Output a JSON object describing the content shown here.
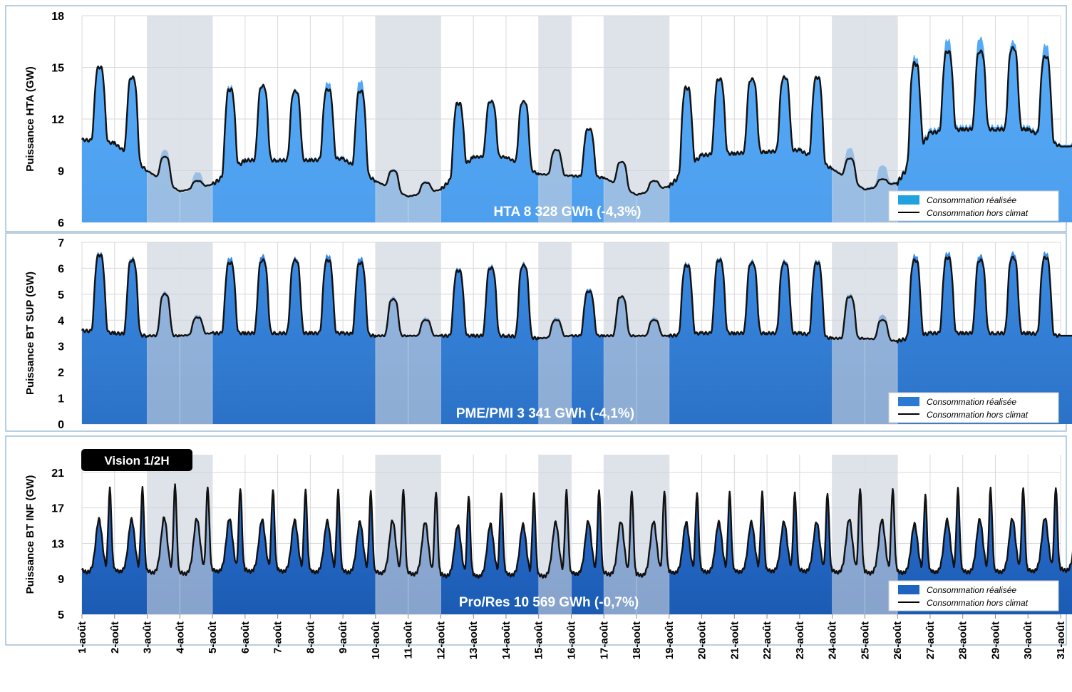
{
  "colors": {
    "weekend_band": "#c9d1db",
    "climate_line": "#111111",
    "frame": "#6f9fc6"
  },
  "badge": {
    "label": "Vision 1/2H"
  },
  "x_axis": {
    "tick_labels": [
      "1-août",
      "2-août",
      "3-août",
      "4-août",
      "5-août",
      "6-août",
      "7-août",
      "8-août",
      "9-août",
      "10-août",
      "11-août",
      "12-août",
      "13-août",
      "14-août",
      "15-août",
      "16-août",
      "17-août",
      "18-août",
      "19-août",
      "20-août",
      "21-août",
      "22-août",
      "23-août",
      "24-août",
      "25-août",
      "26-août",
      "27-août",
      "28-août",
      "29-août",
      "30-août",
      "31-août"
    ]
  },
  "shaded_day_ranges": [
    [
      3,
      5
    ],
    [
      10,
      12
    ],
    [
      15,
      16
    ],
    [
      17,
      19
    ],
    [
      24,
      26
    ]
  ],
  "panels": [
    {
      "ylabel": "Puissance HTA (GW)",
      "annotation": "HTA    8 328 GWh (-4,3%)",
      "legend": [
        "Consommation réalisée",
        "Consommation hors climat"
      ],
      "legend_swatch": "#1fa2dd",
      "fill_color": "#55aaf7",
      "fill_color_bottom": "#4d9fee",
      "ylim": [
        6,
        18
      ],
      "yticks": [
        6,
        9,
        12,
        15,
        18
      ]
    },
    {
      "ylabel": "Puissance BT SUP (GW)",
      "annotation": "PME/PMI  3 341 GWh (-4,1%)",
      "legend": [
        "Consommation réalisée",
        "Consommation hors climat"
      ],
      "legend_swatch": "#2a79d2",
      "fill_color": "#3b8ae2",
      "fill_color_bottom": "#2b72c7",
      "ylim": [
        0,
        7
      ],
      "yticks": [
        0,
        1,
        2,
        3,
        4,
        5,
        6,
        7
      ]
    },
    {
      "ylabel": "Puissance BT INF (GW)",
      "annotation": "Pro/Res  10 569 GWh (-0,7%)",
      "legend": [
        "Consommation réalisée",
        "Consommation hors climat"
      ],
      "legend_swatch": "#1e63bf",
      "fill_color": "#2a6fd0",
      "fill_color_bottom": "#1b5bb3",
      "ylim": [
        5,
        23
      ],
      "yticks": [
        5,
        9,
        13,
        17,
        21
      ]
    }
  ],
  "chart_data": [
    {
      "type": "area",
      "ylabel": "Puissance HTA (GW)",
      "ylim": [
        6,
        18
      ],
      "x": [
        "1-août",
        "2-août",
        "3-août",
        "4-août",
        "5-août",
        "6-août",
        "7-août",
        "8-août",
        "9-août",
        "10-août",
        "11-août",
        "12-août",
        "13-août",
        "14-août",
        "15-août",
        "16-août",
        "17-août",
        "18-août",
        "19-août",
        "20-août",
        "21-août",
        "22-août",
        "23-août",
        "24-août",
        "25-août",
        "26-août",
        "27-août",
        "28-août",
        "29-août",
        "30-août",
        "31-août"
      ],
      "series": [
        {
          "name": "Consommation réalisée",
          "daily_peak": [
            15.1,
            14.5,
            10.2,
            8.9,
            13.9,
            14.0,
            13.7,
            14.1,
            14.2,
            9.1,
            8.4,
            12.9,
            13.1,
            13.0,
            10.2,
            11.4,
            9.5,
            8.4,
            13.9,
            14.3,
            14.3,
            14.5,
            14.5,
            10.3,
            9.3,
            15.6,
            16.6,
            16.7,
            16.5,
            16.3,
            11.0
          ],
          "daily_trough": [
            10.8,
            10.6,
            9.0,
            7.7,
            8.2,
            9.7,
            9.7,
            9.7,
            9.8,
            8.5,
            7.5,
            7.8,
            9.8,
            9.8,
            8.8,
            8.7,
            8.6,
            7.6,
            8.1,
            10.0,
            10.1,
            10.1,
            10.3,
            9.2,
            8.0,
            8.4,
            11.4,
            11.6,
            11.6,
            11.6,
            10.5
          ]
        },
        {
          "name": "Consommation hors climat",
          "daily_peak": [
            15.0,
            14.4,
            9.8,
            8.4,
            13.7,
            13.9,
            13.6,
            13.7,
            13.6,
            9.0,
            8.3,
            12.9,
            13.0,
            13.0,
            10.2,
            11.4,
            9.5,
            8.4,
            13.8,
            14.3,
            14.3,
            14.4,
            14.4,
            9.7,
            8.5,
            15.2,
            15.9,
            15.9,
            16.1,
            15.6,
            10.6
          ],
          "daily_trough": [
            10.8,
            10.6,
            9.0,
            7.8,
            8.2,
            9.6,
            9.6,
            9.6,
            9.7,
            8.4,
            7.5,
            7.9,
            9.8,
            9.8,
            8.8,
            8.7,
            8.6,
            7.6,
            8.1,
            9.9,
            10.0,
            10.1,
            10.2,
            9.1,
            7.9,
            8.3,
            11.2,
            11.4,
            11.4,
            11.4,
            10.4
          ]
        }
      ]
    },
    {
      "type": "area",
      "ylabel": "Puissance BT SUP (GW)",
      "ylim": [
        0,
        7
      ],
      "x": [
        "1-août",
        "2-août",
        "3-août",
        "4-août",
        "5-août",
        "6-août",
        "7-août",
        "8-août",
        "9-août",
        "10-août",
        "11-août",
        "12-août",
        "13-août",
        "14-août",
        "15-août",
        "16-août",
        "17-août",
        "18-août",
        "19-août",
        "20-août",
        "21-août",
        "22-août",
        "23-août",
        "24-août",
        "25-août",
        "26-août",
        "27-août",
        "28-août",
        "29-août",
        "30-août",
        "31-août"
      ],
      "series": [
        {
          "name": "Consommation réalisée",
          "daily_peak": [
            6.6,
            6.4,
            5.1,
            4.2,
            6.4,
            6.5,
            6.4,
            6.5,
            6.4,
            4.9,
            4.1,
            6.0,
            6.1,
            6.2,
            4.1,
            5.2,
            4.9,
            4.1,
            6.2,
            6.4,
            6.3,
            6.3,
            6.3,
            5.0,
            4.2,
            6.5,
            6.6,
            6.5,
            6.6,
            6.6,
            3.5
          ],
          "daily_trough": [
            3.6,
            3.5,
            3.4,
            3.4,
            3.5,
            3.5,
            3.5,
            3.5,
            3.5,
            3.4,
            3.4,
            3.4,
            3.4,
            3.4,
            3.3,
            3.4,
            3.4,
            3.4,
            3.4,
            3.5,
            3.5,
            3.5,
            3.5,
            3.3,
            3.3,
            3.2,
            3.5,
            3.5,
            3.5,
            3.5,
            3.4
          ]
        },
        {
          "name": "Consommation hors climat",
          "daily_peak": [
            6.5,
            6.3,
            5.0,
            4.1,
            6.2,
            6.3,
            6.3,
            6.3,
            6.2,
            4.8,
            4.0,
            5.9,
            6.0,
            6.1,
            4.0,
            5.1,
            4.9,
            4.0,
            6.1,
            6.3,
            6.2,
            6.2,
            6.2,
            4.9,
            4.0,
            6.3,
            6.4,
            6.3,
            6.4,
            6.4,
            3.4
          ],
          "daily_trough": [
            3.6,
            3.5,
            3.4,
            3.4,
            3.5,
            3.5,
            3.5,
            3.5,
            3.5,
            3.4,
            3.4,
            3.4,
            3.4,
            3.4,
            3.3,
            3.4,
            3.4,
            3.4,
            3.4,
            3.5,
            3.5,
            3.5,
            3.5,
            3.3,
            3.3,
            3.2,
            3.5,
            3.5,
            3.5,
            3.5,
            3.4
          ]
        }
      ]
    },
    {
      "type": "area",
      "ylabel": "Puissance BT INF (GW)",
      "ylim": [
        5,
        23
      ],
      "x": [
        "1-août",
        "2-août",
        "3-août",
        "4-août",
        "5-août",
        "6-août",
        "7-août",
        "8-août",
        "9-août",
        "10-août",
        "11-août",
        "12-août",
        "13-août",
        "14-août",
        "15-août",
        "16-août",
        "17-août",
        "18-août",
        "19-août",
        "20-août",
        "21-août",
        "22-août",
        "23-août",
        "24-août",
        "25-août",
        "26-août",
        "27-août",
        "28-août",
        "29-août",
        "30-août",
        "31-août"
      ],
      "series": [
        {
          "name": "Consommation réalisée",
          "daily_peak": [
            19.3,
            19.3,
            19.6,
            19.4,
            19.3,
            19.2,
            19.1,
            19.0,
            18.9,
            19.1,
            18.9,
            18.5,
            18.7,
            18.6,
            18.9,
            19.0,
            19.0,
            19.0,
            18.8,
            18.8,
            18.8,
            18.8,
            18.8,
            19.3,
            19.2,
            18.5,
            19.2,
            19.3,
            19.4,
            19.5,
            19.7
          ],
          "daily_trough": [
            10.0,
            10.1,
            10.0,
            9.8,
            10.1,
            10.1,
            10.1,
            10.0,
            10.0,
            9.9,
            9.8,
            9.6,
            9.5,
            9.7,
            9.5,
            9.8,
            9.8,
            9.6,
            9.9,
            10.0,
            10.0,
            10.1,
            10.1,
            10.0,
            9.9,
            9.9,
            10.0,
            10.0,
            10.0,
            10.1,
            10.2
          ]
        },
        {
          "name": "Consommation hors climat",
          "daily_peak": [
            19.2,
            19.2,
            19.6,
            19.4,
            19.3,
            19.1,
            19.0,
            18.9,
            18.8,
            19.1,
            18.9,
            18.4,
            18.6,
            18.5,
            18.9,
            19.0,
            19.0,
            19.0,
            18.7,
            18.7,
            18.7,
            18.7,
            18.7,
            19.3,
            19.2,
            18.4,
            19.1,
            19.2,
            19.3,
            19.4,
            19.6
          ],
          "daily_trough": [
            10.0,
            10.1,
            10.0,
            9.8,
            10.1,
            10.1,
            10.1,
            10.0,
            10.0,
            9.9,
            9.8,
            9.6,
            9.5,
            9.7,
            9.5,
            9.8,
            9.8,
            9.6,
            9.9,
            10.0,
            10.0,
            10.1,
            10.1,
            10.0,
            9.9,
            9.9,
            10.0,
            10.0,
            10.0,
            10.1,
            10.2
          ]
        }
      ]
    }
  ]
}
